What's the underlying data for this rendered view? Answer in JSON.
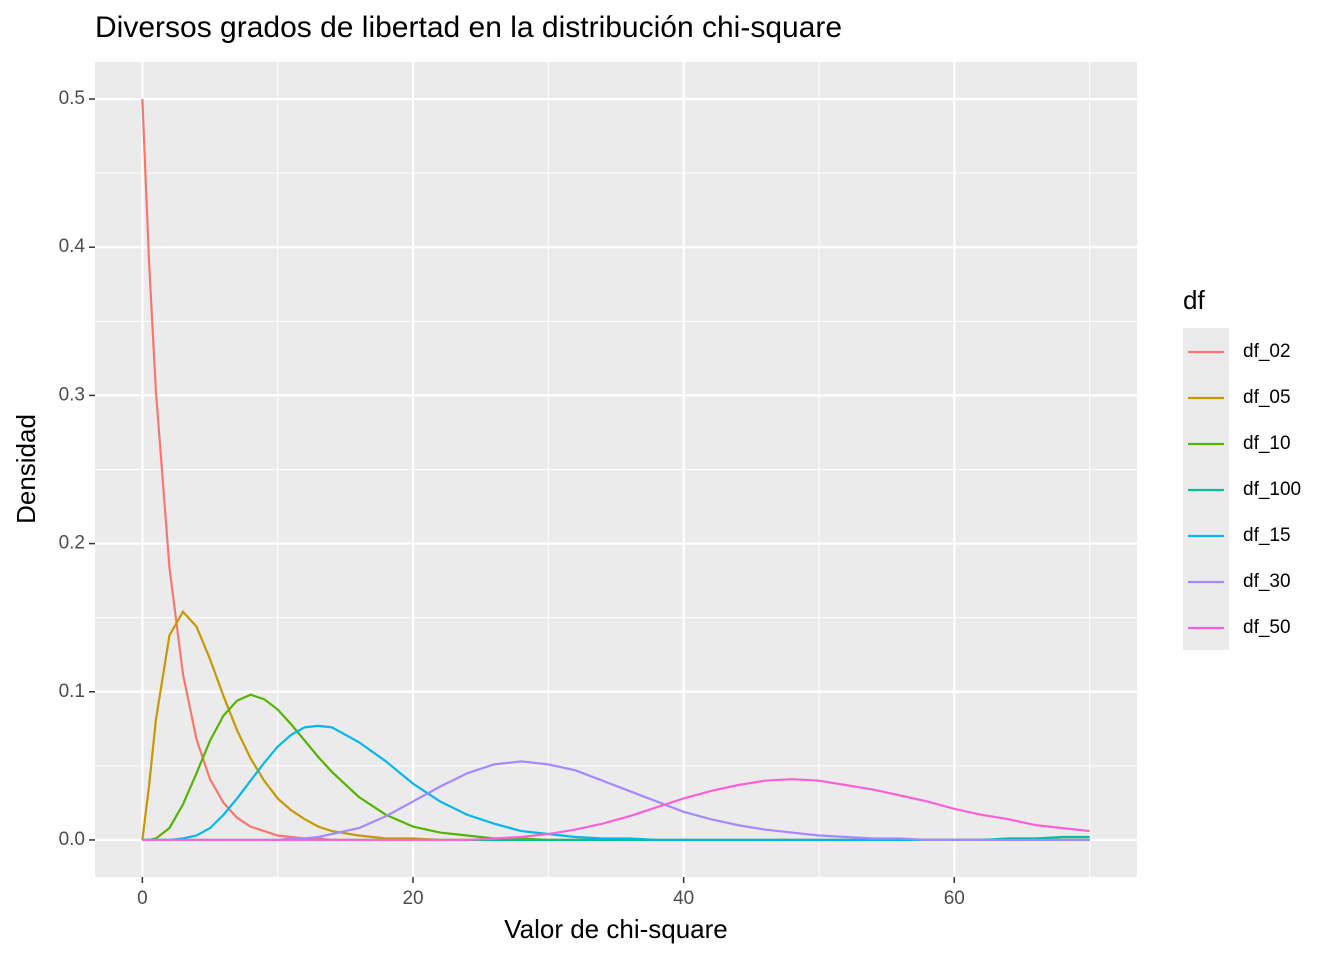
{
  "chart_data": {
    "type": "line",
    "title": "Diversos grados de libertad en la distribución chi-square",
    "x_label": "Valor de chi-square",
    "y_label": "Densidad",
    "legend_title": "df",
    "x": [
      0,
      0.5,
      1,
      2,
      3,
      4,
      5,
      6,
      7,
      8,
      9,
      10,
      11,
      12,
      13,
      14,
      16,
      18,
      20,
      22,
      24,
      26,
      28,
      30,
      32,
      34,
      36,
      38,
      40,
      42,
      44,
      46,
      48,
      50,
      52,
      54,
      56,
      58,
      60,
      62,
      64,
      66,
      68,
      70
    ],
    "series": [
      {
        "name": "df_02",
        "color": "#F8766D",
        "values": [
          0.5,
          0.389,
          0.303,
          0.184,
          0.112,
          0.068,
          0.041,
          0.025,
          0.015,
          0.009,
          0.006,
          0.003,
          0.002,
          0.001,
          0.001,
          0,
          0,
          0,
          0,
          0,
          0,
          0,
          0,
          0,
          0,
          0,
          0,
          0,
          0,
          0,
          0,
          0,
          0,
          0,
          0,
          0,
          0,
          0,
          0,
          0,
          0,
          0,
          0,
          0
        ]
      },
      {
        "name": "df_05",
        "color": "#C49A00",
        "values": [
          0,
          0.037,
          0.081,
          0.138,
          0.154,
          0.144,
          0.122,
          0.097,
          0.074,
          0.055,
          0.04,
          0.028,
          0.02,
          0.014,
          0.009,
          0.006,
          0.003,
          0.001,
          0.001,
          0,
          0,
          0,
          0,
          0,
          0,
          0,
          0,
          0,
          0,
          0,
          0,
          0,
          0,
          0,
          0,
          0,
          0,
          0,
          0,
          0,
          0,
          0,
          0,
          0
        ]
      },
      {
        "name": "df_10",
        "color": "#53B400",
        "values": [
          0,
          0,
          0.001,
          0.008,
          0.024,
          0.045,
          0.067,
          0.084,
          0.094,
          0.098,
          0.095,
          0.088,
          0.078,
          0.067,
          0.056,
          0.046,
          0.029,
          0.017,
          0.009,
          0.005,
          0.003,
          0.001,
          0.001,
          0,
          0,
          0,
          0,
          0,
          0,
          0,
          0,
          0,
          0,
          0,
          0,
          0,
          0,
          0,
          0,
          0,
          0,
          0,
          0,
          0
        ]
      },
      {
        "name": "df_100",
        "color": "#00C094",
        "values": [
          0,
          0,
          0,
          0,
          0,
          0,
          0,
          0,
          0,
          0,
          0,
          0,
          0,
          0,
          0,
          0,
          0,
          0,
          0,
          0,
          0,
          0,
          0,
          0,
          0,
          0,
          0,
          0,
          0,
          0,
          0,
          0,
          0,
          0,
          0,
          0,
          0,
          0,
          0,
          0,
          0.001,
          0.001,
          0.002,
          0.002
        ]
      },
      {
        "name": "df_15",
        "color": "#00B6EB",
        "values": [
          0,
          0,
          0,
          0,
          0.001,
          0.003,
          0.008,
          0.017,
          0.028,
          0.04,
          0.052,
          0.063,
          0.071,
          0.076,
          0.077,
          0.076,
          0.066,
          0.053,
          0.038,
          0.026,
          0.017,
          0.011,
          0.006,
          0.004,
          0.002,
          0.001,
          0.001,
          0,
          0,
          0,
          0,
          0,
          0,
          0,
          0,
          0,
          0,
          0,
          0,
          0,
          0,
          0,
          0,
          0
        ]
      },
      {
        "name": "df_30",
        "color": "#A58AFF",
        "values": [
          0,
          0,
          0,
          0,
          0,
          0,
          0,
          0,
          0,
          0,
          0,
          0,
          0.001,
          0.001,
          0.002,
          0.004,
          0.008,
          0.016,
          0.026,
          0.036,
          0.045,
          0.051,
          0.053,
          0.051,
          0.047,
          0.04,
          0.033,
          0.026,
          0.019,
          0.014,
          0.01,
          0.007,
          0.005,
          0.003,
          0.002,
          0.001,
          0.001,
          0,
          0,
          0,
          0,
          0,
          0,
          0
        ]
      },
      {
        "name": "df_50",
        "color": "#FB61D7",
        "values": [
          0,
          0,
          0,
          0,
          0,
          0,
          0,
          0,
          0,
          0,
          0,
          0,
          0,
          0,
          0,
          0,
          0,
          0,
          0,
          0,
          0,
          0.001,
          0.002,
          0.004,
          0.007,
          0.011,
          0.016,
          0.022,
          0.028,
          0.033,
          0.037,
          0.04,
          0.041,
          0.04,
          0.037,
          0.034,
          0.03,
          0.026,
          0.021,
          0.017,
          0.014,
          0.01,
          0.008,
          0.006
        ]
      }
    ],
    "xlim": [
      -3.5,
      73.5
    ],
    "ylim": [
      -0.025,
      0.525
    ],
    "xticks": [
      0,
      20,
      40,
      60
    ],
    "yticks": [
      {
        "value": 0,
        "label": "0.0"
      },
      0.1,
      0.2,
      0.3,
      0.4,
      0.5
    ],
    "grid": true,
    "legend": "right"
  }
}
